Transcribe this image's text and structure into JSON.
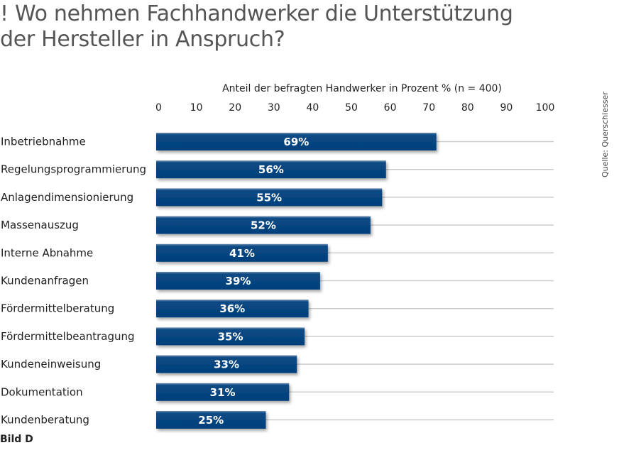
{
  "title_lines": [
    "! Wo nehmen Fachhandwerker die Unterstützung",
    "der Hersteller in Anspruch?"
  ],
  "source": "Quelle: Querschiesser",
  "footer": "Bild D",
  "colors": {
    "bar": "#003f7a",
    "bar_highlight": "#5e7ea3",
    "grid": "#cccccc"
  },
  "chart_data": {
    "type": "bar",
    "orientation": "horizontal",
    "title": "Wo nehmen Fachhandwerker die Unterstützung der Hersteller in Anspruch?",
    "xlabel": "Anteil der befragten Handwerker in Prozent % (n = 400)",
    "ylabel": "",
    "xlim": [
      0,
      100
    ],
    "xticks": [
      0,
      10,
      20,
      30,
      40,
      50,
      60,
      70,
      80,
      90,
      100
    ],
    "categories": [
      "Inbetriebnahme",
      "Regelungsprogrammierung",
      "Anlagendimensionierung",
      "Massenauszug",
      "Interne Abnahme",
      "Kundenanfragen",
      "Fördermittelberatung",
      "Fördermittelbeantragung",
      "Kundeneinweisung",
      "Dokumentation",
      "Kundenberatung"
    ],
    "values": [
      69,
      56,
      55,
      52,
      41,
      39,
      36,
      35,
      33,
      31,
      25
    ],
    "value_labels": [
      "69%",
      "56%",
      "55%",
      "52%",
      "41%",
      "39%",
      "36%",
      "35%",
      "33%",
      "31%",
      "25%"
    ],
    "grid": true,
    "legend": "none"
  }
}
